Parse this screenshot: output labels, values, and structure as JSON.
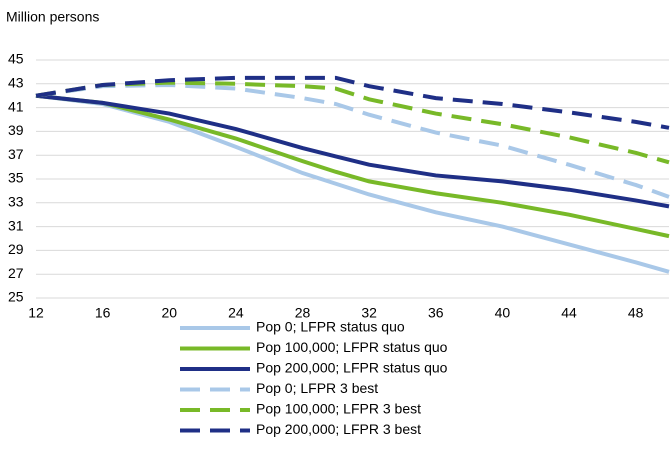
{
  "chart_data": {
    "type": "line",
    "y_label": "Million persons",
    "x": [
      12,
      16,
      20,
      24,
      28,
      30,
      32,
      36,
      40,
      44,
      48,
      50
    ],
    "xlim": [
      12,
      50
    ],
    "xticks": [
      12,
      16,
      20,
      24,
      28,
      32,
      36,
      40,
      44,
      48
    ],
    "ylim": [
      25,
      45
    ],
    "yticks": [
      25,
      27,
      29,
      31,
      33,
      35,
      37,
      39,
      41,
      43,
      45
    ],
    "grid": true,
    "series": [
      {
        "name": "Pop 0; LFPR status quo",
        "color": "#a9c8e8",
        "dashed": false,
        "values": [
          42,
          41.3,
          39.8,
          37.7,
          35.5,
          34.6,
          33.7,
          32.2,
          31,
          29.5,
          28,
          27.2
        ]
      },
      {
        "name": "Pop 100,000; LFPR status quo",
        "color": "#78b928",
        "dashed": false,
        "values": [
          42,
          41.4,
          40,
          38.4,
          36.5,
          35.6,
          34.8,
          33.8,
          33,
          32,
          30.8,
          30.2
        ]
      },
      {
        "name": "Pop 200,000; LFPR status quo",
        "color": "#1f2f86",
        "dashed": false,
        "values": [
          42,
          41.4,
          40.5,
          39.2,
          37.6,
          36.9,
          36.2,
          35.3,
          34.8,
          34.1,
          33.2,
          32.7
        ]
      },
      {
        "name": "Pop 0; LFPR 3 best",
        "color": "#a9c8e8",
        "dashed": true,
        "values": [
          42,
          42.8,
          42.9,
          42.6,
          41.8,
          41.3,
          40.4,
          38.9,
          37.8,
          36.2,
          34.5,
          33.5
        ]
      },
      {
        "name": "Pop 100,000; LFPR 3 best",
        "color": "#78b928",
        "dashed": true,
        "values": [
          42,
          42.9,
          43.1,
          43.0,
          42.8,
          42.6,
          41.7,
          40.5,
          39.6,
          38.5,
          37.2,
          36.4
        ]
      },
      {
        "name": "Pop 200,000; LFPR 3 best",
        "color": "#1f2f86",
        "dashed": true,
        "values": [
          42,
          42.9,
          43.3,
          43.5,
          43.5,
          43.5,
          42.8,
          41.8,
          41.3,
          40.6,
          39.8,
          39.3
        ]
      }
    ]
  }
}
